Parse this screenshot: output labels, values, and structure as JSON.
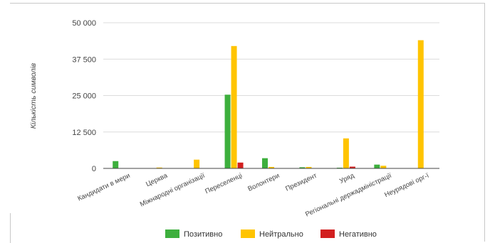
{
  "chart_data": {
    "type": "bar",
    "ylabel": "Кількість символів",
    "xlabel": "",
    "ylim": [
      0,
      50000
    ],
    "y_ticks": [
      "0",
      "12 500",
      "25 000",
      "37 500",
      "50 000"
    ],
    "y_tick_values": [
      0,
      12500,
      25000,
      37500,
      50000
    ],
    "grid": true,
    "legend_position": "bottom",
    "categories": [
      "Кандидати в мери",
      "Церква",
      "Міжнародні організації",
      "Переселенці",
      "Волонтери",
      "Президент",
      "Уряд",
      "Регіональні держадміністрації",
      "Неурядові орг-ї"
    ],
    "series": [
      {
        "name": "Позитивно",
        "color": "#3daf3d",
        "values": [
          2500,
          0,
          0,
          25300,
          3500,
          400,
          200,
          1300,
          0
        ]
      },
      {
        "name": "Нейтрально",
        "color": "#ffc400",
        "values": [
          0,
          300,
          3000,
          42000,
          500,
          500,
          10300,
          900,
          44000
        ]
      },
      {
        "name": "Негативно",
        "color": "#d21f1f",
        "values": [
          0,
          0,
          0,
          2000,
          0,
          0,
          600,
          0,
          0
        ]
      }
    ]
  }
}
